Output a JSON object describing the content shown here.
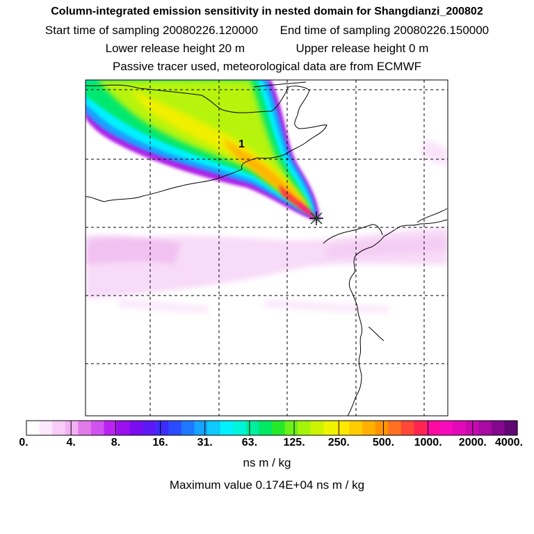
{
  "title": "Column-integrated emission sensitivity in nested domain for Shangdianzi_200802",
  "sampling": {
    "start_label": "Start time of sampling",
    "start_value": "20080226.120000",
    "end_label": "End time of sampling",
    "end_value": "20080226.150000"
  },
  "release": {
    "lower_label": "Lower release height",
    "lower_value": "20 m",
    "upper_label": "Upper release height",
    "upper_value": "0 m"
  },
  "note": "Passive tracer used, meteorological data are from ECMWF",
  "map_label": "1",
  "colorbar": {
    "tick_labels": [
      "0.",
      "4.",
      "8.",
      "16.",
      "31.",
      "63.",
      "125.",
      "250.",
      "500.",
      "1000.",
      "2000.",
      "4000."
    ],
    "colors": [
      "#ffffff",
      "#fde8fd",
      "#f8ccf8",
      "#f2b0f2",
      "#e27ae8",
      "#d052f0",
      "#bb22f2",
      "#9a10ee",
      "#7a0cf0",
      "#5c18f6",
      "#3c2cfc",
      "#2a4cff",
      "#1e78ff",
      "#15a4ff",
      "#0ecaff",
      "#00f0ff",
      "#00f4d8",
      "#00ee9e",
      "#00e864",
      "#26e82a",
      "#6cf018",
      "#a4f40a",
      "#ccf400",
      "#eef400",
      "#ffe800",
      "#ffcc00",
      "#ffb000",
      "#ff9400",
      "#ff7020",
      "#ff4838",
      "#ff2452",
      "#ff0aa0",
      "#f60abc",
      "#e20ab8",
      "#c80ab0",
      "#a80aa2",
      "#84088e",
      "#600874"
    ],
    "units": "ns m / kg"
  },
  "max_value": {
    "label": "Maximum value",
    "value": "0.174E+04",
    "units": "ns m / kg"
  }
}
